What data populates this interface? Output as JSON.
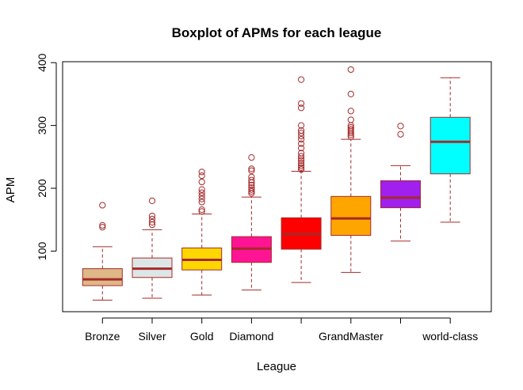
{
  "chart_data": {
    "type": "boxplot",
    "title": "Boxplot of APMs for each league",
    "xlabel": "League",
    "ylabel": "APM",
    "ylim": [
      0,
      400
    ],
    "yticks": [
      100,
      200,
      300,
      400
    ],
    "grid": false,
    "legend": "none",
    "colors": {
      "median": "#A52A2A",
      "whisker": "#A52A2A",
      "outlier": "#A52A2A",
      "box_border": "#A52A2A",
      "frame": "#000000"
    },
    "categories": [
      {
        "label": "Bronze",
        "fill": "#DEB887",
        "min": 22,
        "q1": 45,
        "median": 55,
        "q3": 72,
        "max": 107,
        "outliers": [
          138,
          141,
          173
        ]
      },
      {
        "label": "Silver",
        "fill": "#DDE6E6",
        "min": 25,
        "q1": 58,
        "median": 72,
        "q3": 89,
        "max": 134,
        "outliers": [
          142,
          146,
          151,
          156,
          180
        ]
      },
      {
        "label": "Gold",
        "fill": "#FFD700",
        "min": 30,
        "q1": 70,
        "median": 86,
        "q3": 105,
        "max": 159,
        "outliers": [
          163,
          166,
          178,
          183,
          188,
          193,
          198,
          210,
          220,
          226
        ]
      },
      {
        "label": "Diamond",
        "fill": "#FF1493",
        "min": 38,
        "q1": 82,
        "median": 104,
        "q3": 123,
        "max": 186,
        "outliers": [
          192,
          195,
          198,
          201,
          205,
          209,
          213,
          218,
          228,
          231,
          249
        ]
      },
      {
        "label": "",
        "fill": "#FF0000",
        "min": 50,
        "q1": 103,
        "median": 127,
        "q3": 153,
        "max": 227,
        "outliers": [
          230,
          233,
          236,
          240,
          244,
          247,
          251,
          256,
          264,
          271,
          278,
          283,
          288,
          292,
          300,
          328,
          335,
          373
        ]
      },
      {
        "label": "GrandMaster",
        "fill": "#FFA500",
        "min": 66,
        "q1": 125,
        "median": 152,
        "q3": 187,
        "max": 278,
        "outliers": [
          282,
          285,
          288,
          291,
          294,
          297,
          300,
          309,
          323,
          350,
          389
        ]
      },
      {
        "label": "",
        "fill": "#A020F0",
        "min": 116,
        "q1": 169,
        "median": 185,
        "q3": 212,
        "max": 236,
        "outliers": [
          286,
          299
        ]
      },
      {
        "label": "world-class",
        "fill": "#00FFFF",
        "min": 146,
        "q1": 223,
        "median": 274,
        "q3": 313,
        "max": 376,
        "outliers": []
      }
    ]
  }
}
